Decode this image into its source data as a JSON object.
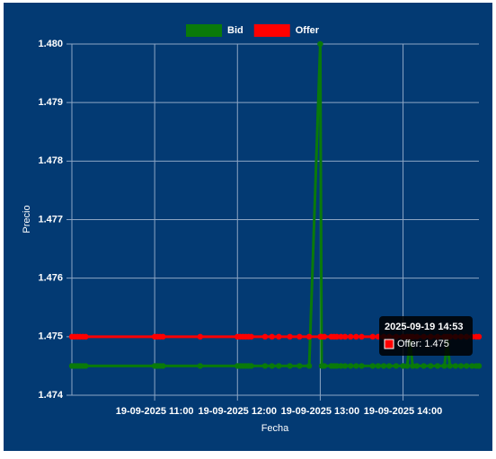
{
  "chart_data": {
    "type": "line",
    "x_label": "Fecha",
    "y_label": "Precio",
    "legend": "top",
    "grid": true,
    "x": [
      "2025-09-19 10:00",
      "2025-09-19 10:02",
      "2025-09-19 10:04",
      "2025-09-19 10:06",
      "2025-09-19 10:08",
      "2025-09-19 10:10",
      "2025-09-19 11:00",
      "2025-09-19 11:02",
      "2025-09-19 11:04",
      "2025-09-19 11:06",
      "2025-09-19 11:33",
      "2025-09-19 12:00",
      "2025-09-19 12:02",
      "2025-09-19 12:04",
      "2025-09-19 12:06",
      "2025-09-19 12:08",
      "2025-09-19 12:10",
      "2025-09-19 12:20",
      "2025-09-19 12:25",
      "2025-09-19 12:30",
      "2025-09-19 12:38",
      "2025-09-19 12:45",
      "2025-09-19 12:52",
      "2025-09-19 13:00",
      "2025-09-19 13:01",
      "2025-09-19 13:03",
      "2025-09-19 13:08",
      "2025-09-19 13:10",
      "2025-09-19 13:12",
      "2025-09-19 13:15",
      "2025-09-19 13:18",
      "2025-09-19 13:22",
      "2025-09-19 13:26",
      "2025-09-19 13:30",
      "2025-09-19 13:38",
      "2025-09-19 13:42",
      "2025-09-19 13:46",
      "2025-09-19 13:50",
      "2025-09-19 13:55",
      "2025-09-19 14:00",
      "2025-09-19 14:03",
      "2025-09-19 14:05",
      "2025-09-19 14:07",
      "2025-09-19 14:10",
      "2025-09-19 14:15",
      "2025-09-19 14:20",
      "2025-09-19 14:25",
      "2025-09-19 14:30",
      "2025-09-19 14:32",
      "2025-09-19 14:34",
      "2025-09-19 14:38",
      "2025-09-19 14:42",
      "2025-09-19 14:46",
      "2025-09-19 14:50",
      "2025-09-19 14:53",
      "2025-09-19 14:55"
    ],
    "series": [
      {
        "name": "Bid",
        "color": "#0a7a0a",
        "values": [
          1.4745,
          1.4745,
          1.4745,
          1.4745,
          1.4745,
          1.4745,
          1.4745,
          1.4745,
          1.4745,
          1.4745,
          1.4745,
          1.4745,
          1.4745,
          1.4745,
          1.4745,
          1.4745,
          1.4745,
          1.4745,
          1.4745,
          1.4745,
          1.4745,
          1.4745,
          1.4745,
          1.48,
          1.4745,
          1.4745,
          1.4745,
          1.4745,
          1.4745,
          1.4745,
          1.4745,
          1.4745,
          1.4745,
          1.4745,
          1.4745,
          1.4745,
          1.4745,
          1.4745,
          1.4745,
          1.4745,
          1.4745,
          1.4749,
          1.4745,
          1.4745,
          1.4745,
          1.4745,
          1.4745,
          1.4745,
          1.4749,
          1.4745,
          1.4745,
          1.4745,
          1.4745,
          1.4745,
          1.4745,
          1.4745
        ]
      },
      {
        "name": "Offer",
        "color": "#ff0000",
        "values": [
          1.475,
          1.475,
          1.475,
          1.475,
          1.475,
          1.475,
          1.475,
          1.475,
          1.475,
          1.475,
          1.475,
          1.475,
          1.475,
          1.475,
          1.475,
          1.475,
          1.475,
          1.475,
          1.475,
          1.475,
          1.475,
          1.475,
          1.475,
          1.475,
          1.475,
          1.475,
          1.475,
          1.475,
          1.475,
          1.475,
          1.475,
          1.475,
          1.475,
          1.475,
          1.475,
          1.475,
          1.475,
          1.475,
          1.475,
          1.475,
          1.475,
          1.475,
          1.475,
          1.475,
          1.475,
          1.475,
          1.475,
          1.475,
          1.475,
          1.475,
          1.475,
          1.475,
          1.475,
          1.475,
          1.475,
          1.475
        ]
      }
    ],
    "xlim": [
      "2025-09-19 10:00",
      "2025-09-19 14:55"
    ],
    "xticks": [
      {
        "value": "2025-09-19 11:00",
        "label": "19-09-2025 11:00"
      },
      {
        "value": "2025-09-19 12:00",
        "label": "19-09-2025 12:00"
      },
      {
        "value": "2025-09-19 13:00",
        "label": "19-09-2025 13:00"
      },
      {
        "value": "2025-09-19 14:00",
        "label": "19-09-2025 14:00"
      }
    ],
    "ylim": [
      1.474,
      1.48
    ],
    "yticks": [
      1.474,
      1.475,
      1.476,
      1.477,
      1.478,
      1.479,
      {
        "value": 1.48,
        "label": "1.480"
      }
    ],
    "tooltip": {
      "title": "2025-09-19 14:53",
      "label": "Offer: 1.475",
      "series": 1
    }
  }
}
